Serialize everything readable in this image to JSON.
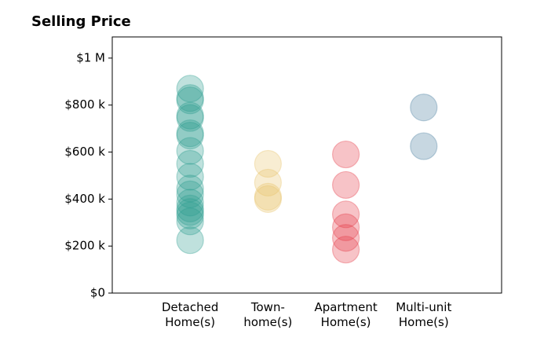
{
  "chart_data": {
    "type": "strip",
    "title": "Selling Price",
    "categories": [
      "Detached\nHome(s)",
      "Town-\nhome(s)",
      "Apartment\nHome(s)",
      "Multi-unit\nHome(s)"
    ],
    "values": [
      [
        870000,
        830000,
        820000,
        755000,
        745000,
        680000,
        670000,
        605000,
        550000,
        495000,
        445000,
        420000,
        385000,
        360000,
        345000,
        330000,
        305000,
        225000
      ],
      [
        550000,
        470000,
        410000,
        400000
      ],
      [
        590000,
        460000,
        335000,
        280000,
        235000,
        185000
      ],
      [
        790000,
        625000
      ]
    ],
    "colors": [
      "#2a9d8f",
      "#e9c46a",
      "#e63946",
      "#457b9d"
    ],
    "xlim": [
      0,
      5
    ],
    "ylim": [
      0,
      1090000
    ],
    "yticks": [
      {
        "value": 0,
        "label": "$0"
      },
      {
        "value": 200000,
        "label": "$200 k"
      },
      {
        "value": 400000,
        "label": "$400 k"
      },
      {
        "value": 600000,
        "label": "$600 k"
      },
      {
        "value": 800000,
        "label": "$800 k"
      },
      {
        "value": 1000000,
        "label": "$1 M"
      }
    ]
  }
}
